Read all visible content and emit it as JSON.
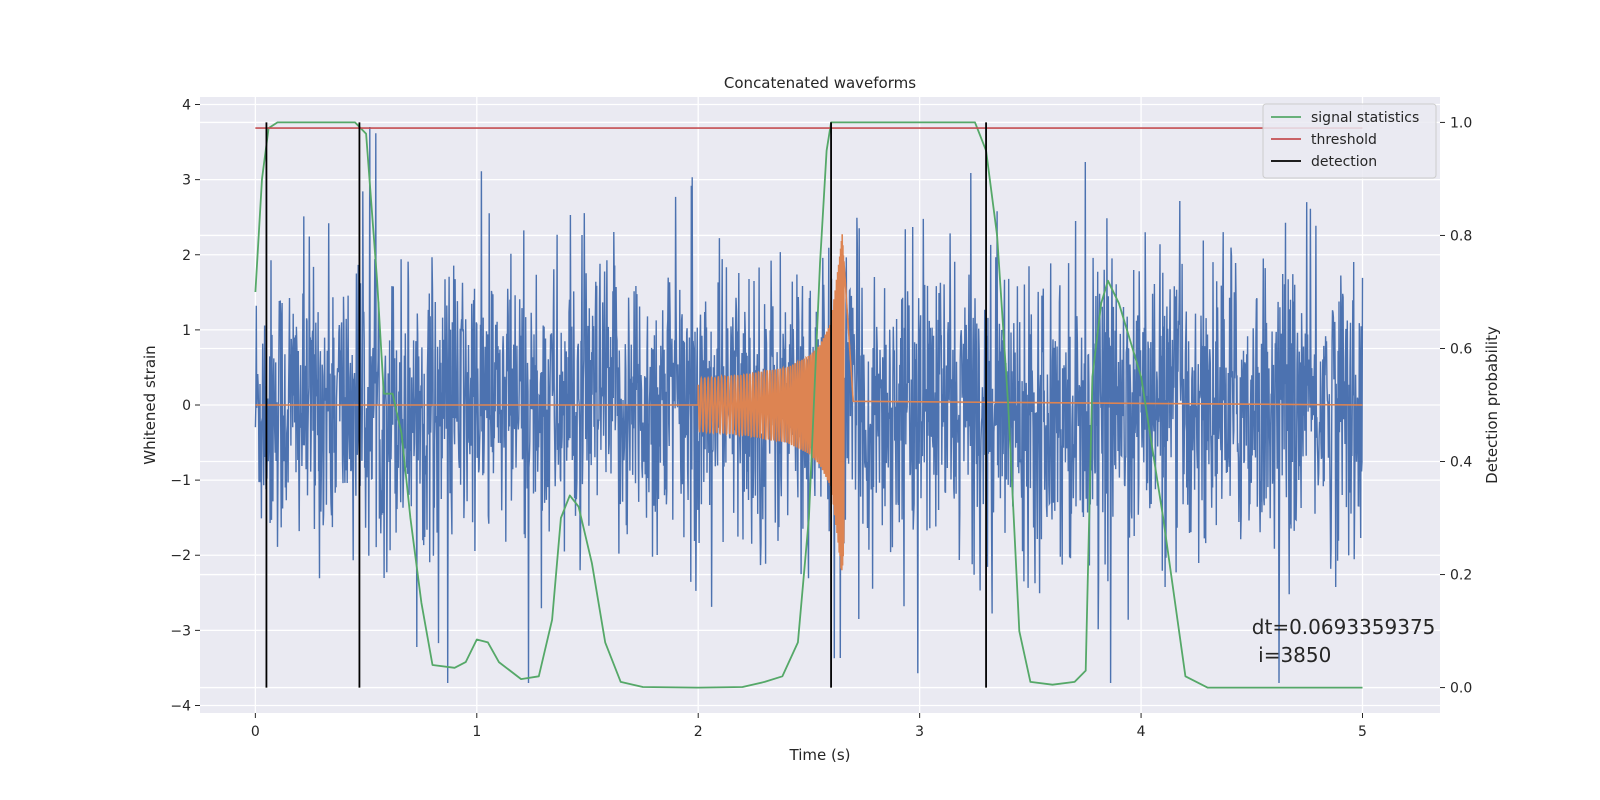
{
  "chart_data": {
    "type": "line",
    "title": "Concatenated waveforms",
    "xlabel": "Time (s)",
    "ylabel_left": "Whitened strain",
    "ylabel_right": "Detection probability",
    "xlim": [
      -0.25,
      5.35
    ],
    "ylim_left": [
      -4.1,
      4.1
    ],
    "ylim_right": [
      -0.045,
      1.045
    ],
    "grid": true,
    "x_ticks": [
      0,
      1,
      2,
      3,
      4,
      5
    ],
    "x_tick_labels": [
      "0",
      "1",
      "2",
      "3",
      "4",
      "5"
    ],
    "y_left_ticks": [
      4,
      3,
      2,
      1,
      0,
      -1,
      -2,
      -3,
      -4
    ],
    "y_left_tick_labels": [
      "4",
      "3",
      "2",
      "1",
      "0",
      "−1",
      "−2",
      "−3",
      "−4"
    ],
    "y_right_ticks": [
      1.0,
      0.8,
      0.6,
      0.4,
      0.2,
      0.0
    ],
    "y_right_tick_labels": [
      "1.0",
      "0.8",
      "0.6",
      "0.4",
      "0.2",
      "0.0"
    ],
    "legend_position": "top-right",
    "legend": [
      {
        "label": "signal statistics",
        "color": "#55a868"
      },
      {
        "label": "threshold",
        "color": "#c44e52"
      },
      {
        "label": "detection",
        "color": "#000000"
      }
    ],
    "series": [
      {
        "name": "noise",
        "axis": "left",
        "color": "#4c72b0",
        "x_range": [
          0,
          5
        ],
        "approx_envelope_abs": 2.6,
        "approx_peak_max": 3.7,
        "approx_peak_min": -3.7
      },
      {
        "name": "chirp",
        "axis": "left",
        "color": "#dd8452",
        "x": [
          2.0,
          2.2,
          2.4,
          2.5,
          2.55,
          2.6,
          2.63,
          2.65,
          2.7
        ],
        "amplitude": [
          0.35,
          0.4,
          0.5,
          0.65,
          0.8,
          1.1,
          1.8,
          2.3,
          0.05
        ]
      },
      {
        "name": "signal statistics",
        "axis": "right",
        "color": "#55a868",
        "x": [
          0.0,
          0.03,
          0.06,
          0.1,
          0.3,
          0.45,
          0.5,
          0.55,
          0.58,
          0.62,
          0.66,
          0.7,
          0.75,
          0.8,
          0.9,
          0.95,
          1.0,
          1.05,
          1.1,
          1.2,
          1.28,
          1.34,
          1.38,
          1.42,
          1.46,
          1.52,
          1.58,
          1.65,
          1.75,
          2.0,
          2.2,
          2.3,
          2.38,
          2.45,
          2.5,
          2.55,
          2.58,
          2.6,
          2.7,
          3.0,
          3.25,
          3.3,
          3.35,
          3.4,
          3.45,
          3.5,
          3.6,
          3.7,
          3.75,
          3.78,
          3.82,
          3.85,
          3.9,
          4.0,
          4.1,
          4.2,
          4.3,
          4.5,
          5.0
        ],
        "y": [
          0.7,
          0.9,
          0.99,
          1.0,
          1.0,
          1.0,
          0.98,
          0.72,
          0.52,
          0.52,
          0.45,
          0.3,
          0.15,
          0.04,
          0.035,
          0.045,
          0.085,
          0.08,
          0.045,
          0.015,
          0.02,
          0.12,
          0.3,
          0.34,
          0.32,
          0.22,
          0.08,
          0.01,
          0.001,
          0.0,
          0.001,
          0.01,
          0.02,
          0.08,
          0.3,
          0.75,
          0.95,
          1.0,
          1.0,
          1.0,
          1.0,
          0.95,
          0.8,
          0.5,
          0.1,
          0.01,
          0.005,
          0.01,
          0.03,
          0.55,
          0.68,
          0.72,
          0.68,
          0.55,
          0.3,
          0.02,
          0.0,
          0.0,
          0.0
        ]
      },
      {
        "name": "threshold",
        "axis": "right",
        "color": "#c44e52",
        "x": [
          0,
          5
        ],
        "y": [
          0.99,
          0.99
        ]
      }
    ],
    "detections": [
      0.05,
      0.47,
      2.6,
      3.3
    ],
    "detection_color": "#000000",
    "annotation": "dt=0.0693359375\n i=3850",
    "annotation_position": [
      4.5,
      -3.05
    ]
  }
}
